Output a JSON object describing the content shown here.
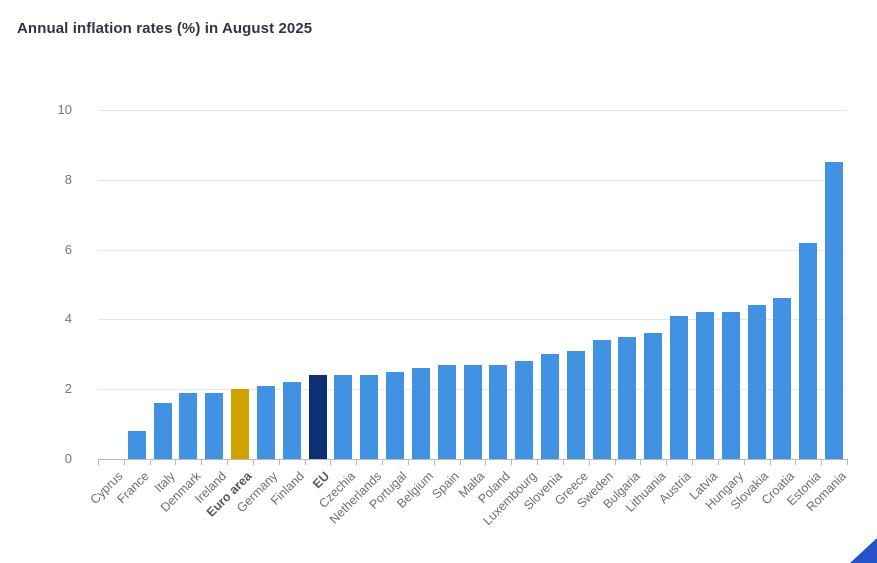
{
  "chart_data": {
    "type": "bar",
    "title": "Annual inflation rates (%) in August 2025",
    "xlabel": "",
    "ylabel": "",
    "ylim": [
      0,
      10
    ],
    "yticks": [
      0,
      2,
      4,
      6,
      8,
      10
    ],
    "grid": "horizontal",
    "legend": "none",
    "categories": [
      "Cyprus",
      "France",
      "Italy",
      "Denmark",
      "Ireland",
      "Euro area",
      "Germany",
      "Finland",
      "EU",
      "Czechia",
      "Netherlands",
      "Portugal",
      "Belgium",
      "Spain",
      "Malta",
      "Poland",
      "Luxembourg",
      "Slovenia",
      "Greece",
      "Sweden",
      "Bulgaria",
      "Lithuania",
      "Austria",
      "Latvia",
      "Hungary",
      "Slovakia",
      "Croatia",
      "Estonia",
      "Romania"
    ],
    "values": [
      0.0,
      0.8,
      1.6,
      1.9,
      1.9,
      2.0,
      2.1,
      2.2,
      2.4,
      2.4,
      2.4,
      2.5,
      2.6,
      2.7,
      2.7,
      2.7,
      2.8,
      3.0,
      3.1,
      3.4,
      3.5,
      3.6,
      4.1,
      4.2,
      4.2,
      4.4,
      4.6,
      6.2,
      8.5
    ],
    "bar_color_default": "#4292e4",
    "highlighted_bars": [
      {
        "category": "Euro area",
        "color": "#cea200",
        "bold_label": true
      },
      {
        "category": "EU",
        "color": "#0e2f72",
        "bold_label": true
      }
    ]
  },
  "colors": {
    "background": "#ffffff",
    "title_text": "#2f3545",
    "axis_text": "#757575",
    "gridline": "#e6e6e6",
    "axis_line": "#b8b8b8",
    "corner_triangle": "#2453c6"
  }
}
